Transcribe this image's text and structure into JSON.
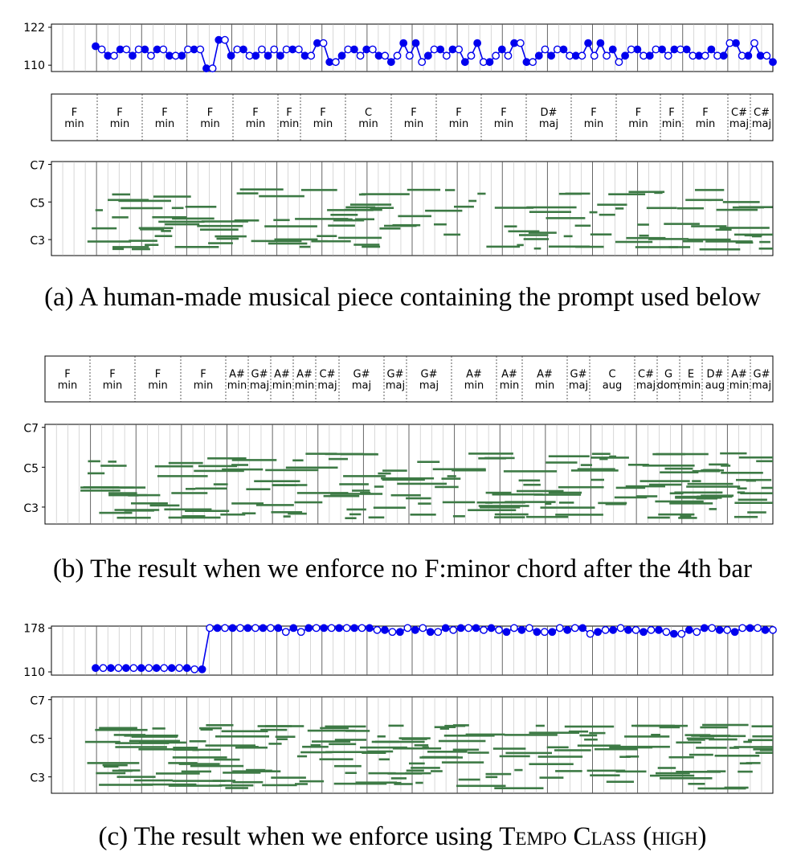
{
  "captions": {
    "a": "(a) A human-made musical piece containing the prompt used below",
    "b": "(b) The result when we enforce no F:minor chord after the 4th bar",
    "c_prefix": "(c) The result when we enforce using ",
    "c_sc1": "Tempo Class",
    "c_suffix": " (high)"
  },
  "colors": {
    "tempo": "#0000ee",
    "notes": "#3d7a45",
    "grid": "#b0b0b0",
    "bar": "#555555"
  },
  "chart_data": [
    {
      "type": "line",
      "panel": "a-tempo",
      "yticks": [
        "122",
        "110"
      ],
      "ylim": [
        108,
        123
      ],
      "beats": 64,
      "values": [
        116,
        115,
        113,
        113,
        115,
        115,
        113,
        115,
        115,
        113,
        115,
        115,
        113,
        113,
        113,
        115,
        115,
        115,
        109,
        109,
        118,
        118,
        113,
        115,
        115,
        113,
        113,
        115,
        113,
        115,
        113,
        115,
        115,
        115,
        113,
        113,
        117,
        117,
        111,
        111,
        113,
        115,
        115,
        113,
        115,
        115,
        113,
        113,
        111,
        113,
        117,
        113,
        117,
        111,
        113,
        115,
        115,
        113,
        115,
        115,
        111,
        113,
        117,
        111,
        111,
        113,
        115,
        113,
        117,
        117,
        111,
        111,
        113,
        115,
        113,
        115,
        115,
        113,
        113,
        113,
        117,
        113,
        117,
        113,
        115,
        111,
        113,
        115,
        115,
        113,
        113,
        115,
        115,
        113,
        115,
        115,
        115,
        113,
        113,
        113,
        115,
        113,
        113,
        117,
        117,
        113,
        113,
        117,
        113,
        113,
        111
      ]
    },
    {
      "type": "table",
      "panel": "a-chords",
      "chords": [
        [
          "F",
          "min"
        ],
        [
          "F",
          "min"
        ],
        [
          "F",
          "min"
        ],
        [
          "F",
          "min"
        ],
        [
          "F",
          "min"
        ],
        [
          "F",
          "min"
        ],
        [
          "F",
          "min"
        ],
        [
          "C",
          "min"
        ],
        [
          "F",
          "min"
        ],
        [
          "F",
          "min"
        ],
        [
          "F",
          "min"
        ],
        [
          "D#",
          "maj"
        ],
        [
          "F",
          "min"
        ],
        [
          "F",
          "min"
        ],
        [
          "F",
          "min"
        ],
        [
          "F",
          "min"
        ],
        [
          "C#",
          "maj"
        ],
        [
          "C#",
          "maj"
        ]
      ]
    },
    {
      "type": "heatmap",
      "panel": "a-piano",
      "yticks": [
        "C7",
        "C5",
        "C3"
      ]
    },
    {
      "type": "table",
      "panel": "b-chords",
      "chords": [
        [
          "F",
          "min"
        ],
        [
          "F",
          "min"
        ],
        [
          "F",
          "min"
        ],
        [
          "F",
          "min"
        ],
        [
          "A#",
          "min"
        ],
        [
          "G#",
          "maj"
        ],
        [
          "A#",
          "min"
        ],
        [
          "A#",
          "min"
        ],
        [
          "C#",
          "maj"
        ],
        [
          "G#",
          "maj"
        ],
        [
          "G#",
          "maj"
        ],
        [
          "G#",
          "maj"
        ],
        [
          "A#",
          "min"
        ],
        [
          "A#",
          "min"
        ],
        [
          "A#",
          "min"
        ],
        [
          "G#",
          "maj"
        ],
        [
          "C",
          "aug"
        ],
        [
          "C#",
          "maj"
        ],
        [
          "G",
          "dom"
        ],
        [
          "E",
          "min"
        ],
        [
          "D#",
          "aug"
        ],
        [
          "A#",
          "min"
        ],
        [
          "G#",
          "maj"
        ]
      ]
    },
    {
      "type": "heatmap",
      "panel": "b-piano",
      "yticks": [
        "C7",
        "C5",
        "C3"
      ]
    },
    {
      "type": "line",
      "panel": "c-tempo",
      "yticks": [
        "178",
        "110"
      ],
      "ylim": [
        105,
        181
      ],
      "values": [
        116,
        116,
        116,
        116,
        116,
        116,
        116,
        116,
        116,
        116,
        116,
        116,
        116,
        114,
        114,
        178,
        178,
        178,
        178,
        178,
        178,
        178,
        178,
        178,
        178,
        172,
        178,
        172,
        178,
        178,
        178,
        178,
        178,
        178,
        178,
        178,
        178,
        175,
        175,
        172,
        172,
        178,
        175,
        178,
        172,
        172,
        178,
        175,
        178,
        178,
        178,
        175,
        178,
        175,
        172,
        178,
        175,
        178,
        172,
        172,
        172,
        178,
        175,
        178,
        178,
        169,
        172,
        175,
        175,
        178,
        175,
        175,
        172,
        175,
        175,
        172,
        169,
        169,
        175,
        172,
        178,
        178,
        175,
        175,
        172,
        178,
        178,
        178,
        175,
        175
      ]
    },
    {
      "type": "heatmap",
      "panel": "c-piano",
      "yticks": [
        "C7",
        "C5",
        "C3"
      ]
    }
  ]
}
